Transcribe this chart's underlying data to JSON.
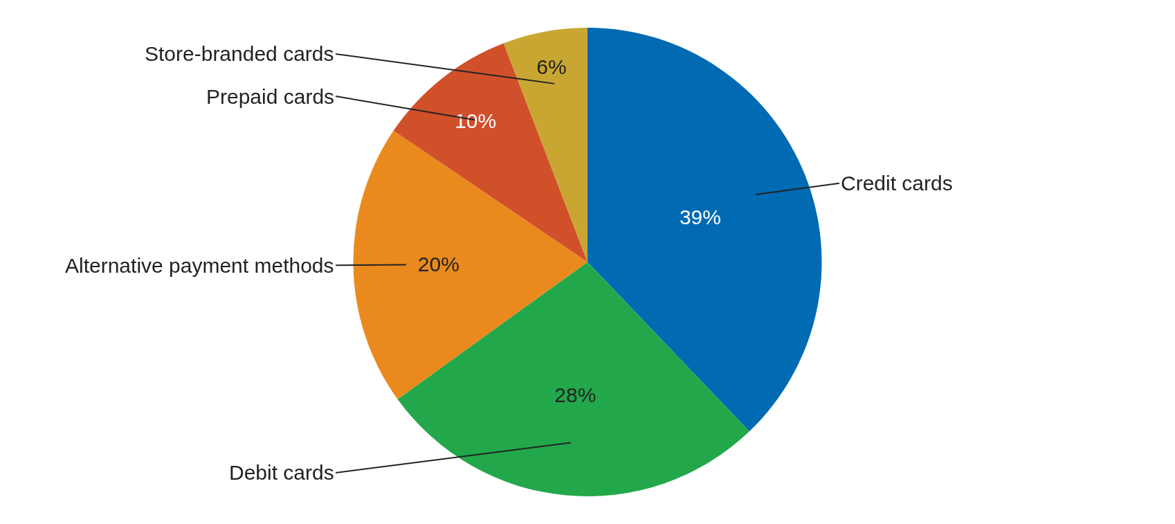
{
  "chart_data": {
    "type": "pie",
    "categories": [
      "Credit cards",
      "Debit cards",
      "Alternative payment methods",
      "Prepaid cards",
      "Store-branded cards"
    ],
    "values": [
      39,
      28,
      20,
      10,
      6
    ],
    "value_labels": [
      "39%",
      "28%",
      "20%",
      "10%",
      "6%"
    ],
    "colors": [
      "#006ab3",
      "#22a84a",
      "#ea8a1e",
      "#d0502a",
      "#c9a632"
    ],
    "legend": false
  }
}
